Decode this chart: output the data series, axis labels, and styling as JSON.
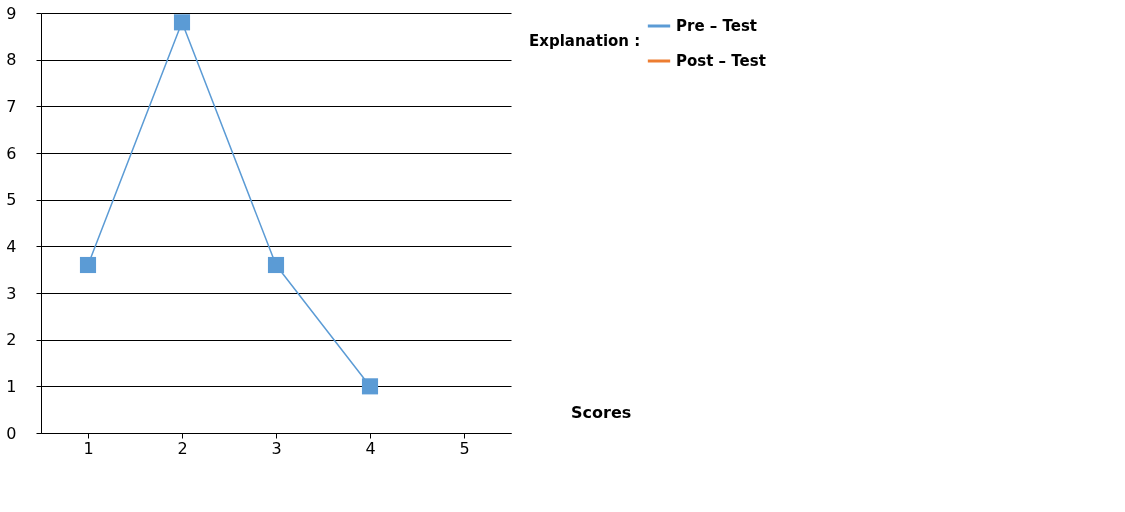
{
  "chart_data": {
    "type": "line",
    "categories": [
      "1",
      "2",
      "3",
      "4",
      "5"
    ],
    "series": [
      {
        "name": "Pre – Test",
        "color": "#5b9bd5",
        "values": [
          3.6,
          8.8,
          3.6,
          1.0,
          null
        ]
      },
      {
        "name": "Post – Test",
        "color": "#ed7d31",
        "values": [
          null,
          null,
          null,
          null,
          null
        ]
      }
    ],
    "legend_title": "Explanation :",
    "legend": "right",
    "marker": "square",
    "line_style": "solid",
    "ylim": [
      0,
      9
    ],
    "yticks": [
      0,
      1,
      2,
      3,
      4,
      5,
      6,
      7,
      8,
      9
    ],
    "grid": "y",
    "annotations": [
      "Scores"
    ]
  }
}
